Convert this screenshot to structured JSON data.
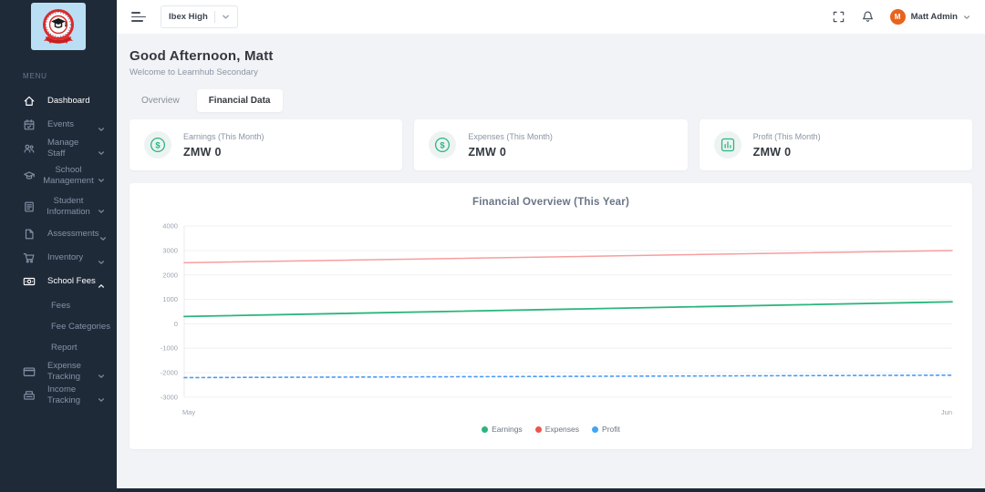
{
  "sidebar": {
    "menu_label": "MENU",
    "items": [
      {
        "label": "Dashboard",
        "icon": "home-icon",
        "active": true,
        "chevron": "none"
      },
      {
        "label": "Events",
        "icon": "calendar-icon",
        "active": false,
        "chevron": "down"
      },
      {
        "label": "Manage Staff",
        "icon": "users-icon",
        "active": false,
        "chevron": "down"
      },
      {
        "label": "School Management",
        "icon": "graduation-cap-icon",
        "active": false,
        "chevron": "down"
      },
      {
        "label": "Student Information",
        "icon": "file-text-icon",
        "active": false,
        "chevron": "down"
      },
      {
        "label": "Assessments",
        "icon": "document-icon",
        "active": false,
        "chevron": "down"
      },
      {
        "label": "Inventory",
        "icon": "cart-icon",
        "active": false,
        "chevron": "down"
      },
      {
        "label": "School Fees",
        "icon": "money-icon",
        "active": true,
        "chevron": "up"
      },
      {
        "label": "Expense Tracking",
        "icon": "credit-card-icon",
        "active": false,
        "chevron": "down"
      },
      {
        "label": "Income Tracking",
        "icon": "cash-register-icon",
        "active": false,
        "chevron": "down"
      }
    ],
    "school_fees_children": [
      "Fees",
      "Fee Categories",
      "Report"
    ]
  },
  "topbar": {
    "school_selector": "Ibex High",
    "user_name": "Matt Admin",
    "avatar_initial": "M"
  },
  "page": {
    "greeting": "Good Afternoon, Matt",
    "welcome": "Welcome to Learnhub Secondary",
    "tabs": [
      {
        "label": "Overview",
        "active": false
      },
      {
        "label": "Financial Data",
        "active": true
      }
    ]
  },
  "cards": [
    {
      "label": "Earnings (This Month)",
      "value": "ZMW 0",
      "icon": "dollar-circle-icon"
    },
    {
      "label": "Expenses (This Month)",
      "value": "ZMW 0",
      "icon": "dollar-circle-icon"
    },
    {
      "label": "Profit (This Month)",
      "value": "ZMW 0",
      "icon": "bar-chart-icon"
    }
  ],
  "chart_data": {
    "type": "line",
    "title": "Financial Overview (This Year)",
    "x": [
      "May",
      "Jun"
    ],
    "series": [
      {
        "name": "Earnings",
        "values": [
          300,
          900
        ],
        "color": "#2ab57d",
        "dot": "#2ab57d",
        "width": 1.8,
        "dashed": false
      },
      {
        "name": "Expenses",
        "values": [
          2500,
          3000
        ],
        "color": "#f79e9e",
        "dot": "#ef5350",
        "width": 1.5,
        "dashed": false
      },
      {
        "name": "Profit",
        "values": [
          -2200,
          -2100
        ],
        "color": "#4a9bf5",
        "dot": "#42a5f5",
        "width": 1.6,
        "dashed": true
      }
    ],
    "ylim": [
      -3000,
      4000
    ],
    "ytick_step": 1000,
    "yticks": [
      4000,
      3000,
      2000,
      1000,
      0,
      -1000,
      -2000,
      -3000
    ],
    "grid": true,
    "legend_position": "bottom",
    "xlabel": "",
    "ylabel": ""
  },
  "colors": {
    "sidebar_bg": "#1f2a39",
    "accent_teal": "#2ab57d",
    "avatar_orange": "#e8641e",
    "content_bg": "#f2f3f6"
  }
}
